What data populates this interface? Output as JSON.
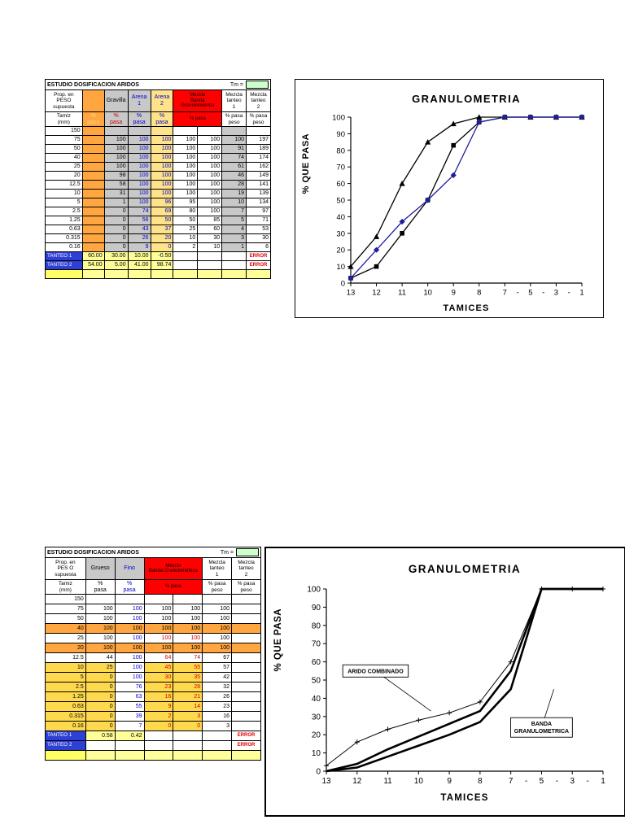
{
  "table1": {
    "title": "ESTUDIO DOSIFICACION ARIDOS",
    "tm_label": "Tm =",
    "prop_header": "Prop. en\nPESO\nsupuesta",
    "tamiz_header": "Tamiz\n(mm)",
    "groups": [
      {
        "label": ""
      },
      {
        "label": "Gravilla"
      },
      {
        "label": "Arena\n1"
      },
      {
        "label": "Arena\n2"
      },
      {
        "label": "Mezcla\nBanda Granulométrica",
        "span": 2
      },
      {
        "label": "Mezcla\ntanteo\n1"
      },
      {
        "label": "Mezcla\ntanteo\n2"
      }
    ],
    "pct": [
      {
        "label": "%\npasa"
      },
      {
        "label": "%\npasa"
      },
      {
        "label": "%\npasa"
      },
      {
        "label": "%\npasa"
      },
      {
        "label": "% pasa",
        "span": 2
      },
      {
        "label": "% pasa\npeso"
      },
      {
        "label": "% pasa\npeso"
      }
    ],
    "rows": [
      {
        "tamiz": "150",
        "values": [
          "",
          "",
          "",
          "",
          "",
          "",
          "",
          ""
        ]
      },
      {
        "tamiz": "75",
        "values": [
          "",
          "100",
          "100",
          "100",
          "100",
          "100",
          "100",
          "197"
        ]
      },
      {
        "tamiz": "50",
        "values": [
          "",
          "100",
          "100",
          "100",
          "100",
          "100",
          "91",
          "189"
        ]
      },
      {
        "tamiz": "40",
        "values": [
          "",
          "100",
          "100",
          "100",
          "100",
          "100",
          "74",
          "174"
        ]
      },
      {
        "tamiz": "25",
        "values": [
          "",
          "100",
          "100",
          "100",
          "100",
          "100",
          "61",
          "162"
        ]
      },
      {
        "tamiz": "20",
        "values": [
          "",
          "98",
          "100",
          "100",
          "100",
          "100",
          "46",
          "149"
        ]
      },
      {
        "tamiz": "12.5",
        "values": [
          "",
          "58",
          "100",
          "100",
          "100",
          "100",
          "28",
          "141"
        ]
      },
      {
        "tamiz": "10",
        "values": [
          "",
          "31",
          "100",
          "100",
          "100",
          "100",
          "19",
          "139"
        ]
      },
      {
        "tamiz": "5",
        "values": [
          "",
          "1",
          "100",
          "96",
          "95",
          "100",
          "10",
          "134"
        ]
      },
      {
        "tamiz": "2.5",
        "values": [
          "",
          "0",
          "74",
          "69",
          "80",
          "100",
          "7",
          "97"
        ]
      },
      {
        "tamiz": "1.25",
        "values": [
          "",
          "0",
          "56",
          "50",
          "50",
          "85",
          "5",
          "71"
        ]
      },
      {
        "tamiz": "0.63",
        "values": [
          "",
          "0",
          "43",
          "37",
          "25",
          "60",
          "4",
          "53"
        ]
      },
      {
        "tamiz": "0.315",
        "values": [
          "",
          "0",
          "26",
          "20",
          "10",
          "30",
          "3",
          "30"
        ]
      },
      {
        "tamiz": "0.16",
        "values": [
          "",
          "0",
          "9",
          "0",
          "2",
          "10",
          "1",
          "6"
        ]
      }
    ],
    "tanteos": [
      {
        "label": "TANTEO 1",
        "style": "blue",
        "values": [
          "60.00",
          "30.00",
          "10.00",
          "-0.50",
          "",
          "",
          "",
          ""
        ],
        "error": "ERROR"
      },
      {
        "label": "TANTEO 2",
        "style": "blue",
        "values": [
          "54.00",
          "5.00",
          "41.00",
          "98.74",
          "",
          "",
          "",
          ""
        ],
        "error": "ERROR"
      },
      {
        "label": "TANTEO 3",
        "style": "yellow",
        "values": [
          "",
          "",
          "",
          "",
          "",
          "",
          "",
          ""
        ],
        "error": ""
      }
    ]
  },
  "table2": {
    "title": "ESTUDIO DOSIFICACION ARIDOS",
    "tm_label": "Tm =",
    "prop_header": "Prop. en\nPES O\nsupuesta",
    "tamiz_header": "Tamiz\n(mm)",
    "groups": [
      {
        "label": "Grueso"
      },
      {
        "label": "Fino"
      },
      {
        "label": "Mezcla\nBanda Granulométrica",
        "span": 2
      },
      {
        "label": "Mezcla\ntanteo\n1"
      },
      {
        "label": "Mezcla\ntanteo\n2"
      }
    ],
    "pct": [
      {
        "label": "%\npasa"
      },
      {
        "label": "%\npasa"
      },
      {
        "label": "% pasa",
        "span": 2
      },
      {
        "label": "% pasa\npeso"
      },
      {
        "label": "% pasa\npeso"
      }
    ],
    "rows": [
      {
        "tamiz": "150",
        "values": [
          "",
          "",
          "",
          "",
          "",
          ""
        ]
      },
      {
        "tamiz": "75",
        "values": [
          "100",
          "100",
          "100",
          "100",
          "100",
          ""
        ]
      },
      {
        "tamiz": "50",
        "values": [
          "100",
          "100",
          "100",
          "100",
          "100",
          ""
        ]
      },
      {
        "tamiz": "40",
        "values": [
          "100",
          "100",
          "100",
          "100",
          "100",
          ""
        ],
        "hl": "orange"
      },
      {
        "tamiz": "25",
        "values": [
          "100",
          "100",
          "100",
          "100",
          "100",
          ""
        ],
        "red": true
      },
      {
        "tamiz": "20",
        "values": [
          "100",
          "100",
          "100",
          "100",
          "100",
          ""
        ],
        "hl": "orange"
      },
      {
        "tamiz": "12.5",
        "values": [
          "44",
          "100",
          "64",
          "74",
          "67",
          ""
        ],
        "red": true
      },
      {
        "tamiz": "10",
        "values": [
          "25",
          "100",
          "45",
          "55",
          "57",
          ""
        ],
        "hl": "yellow",
        "red": true
      },
      {
        "tamiz": "5",
        "values": [
          "0",
          "100",
          "30",
          "35",
          "42",
          ""
        ],
        "hl": "yellow",
        "red": true
      },
      {
        "tamiz": "2.5",
        "values": [
          "0",
          "76",
          "23",
          "28",
          "32",
          ""
        ],
        "hl": "yellow",
        "red": true
      },
      {
        "tamiz": "1.25",
        "values": [
          "0",
          "63",
          "16",
          "21",
          "26",
          ""
        ],
        "hl": "yellow",
        "red": true
      },
      {
        "tamiz": "0.63",
        "values": [
          "0",
          "55",
          "9",
          "14",
          "23",
          ""
        ],
        "hl": "yellow",
        "red": true
      },
      {
        "tamiz": "0.315",
        "values": [
          "0",
          "39",
          "2",
          "3",
          "16",
          ""
        ],
        "hl": "yellow",
        "red": true
      },
      {
        "tamiz": "0.16",
        "values": [
          "0",
          "7",
          "0",
          "0",
          "3",
          ""
        ],
        "hl": "yellow",
        "red": true
      }
    ],
    "tanteos": [
      {
        "label": "TANTEO 1",
        "style": "blue",
        "values": [
          "0.58",
          "0.42",
          "",
          "",
          "",
          ""
        ],
        "error": "ERROR"
      },
      {
        "label": "TANTEO 2",
        "style": "blue",
        "values": [
          "",
          "",
          "",
          "",
          "",
          ""
        ],
        "error": "ERROR"
      },
      {
        "label": "TANTEO 3",
        "style": "yellow",
        "values": [
          "",
          "",
          "",
          "",
          "",
          ""
        ],
        "error": ""
      }
    ]
  },
  "chart_data": [
    {
      "id": "chart1",
      "type": "line",
      "title": "GRANULOMETRIA",
      "ylabel": "% QUE PASA",
      "xlabel": "TAMICES",
      "categories": [
        "13",
        "12",
        "11",
        "10",
        "9",
        "8",
        "7",
        "5",
        "3",
        "1"
      ],
      "ylim": [
        0,
        100
      ],
      "ytick_step": 10,
      "series": [
        {
          "name": "mezcla-triangulo",
          "marker": "triangle",
          "color": "#000000",
          "width": 1.3,
          "values": [
            10,
            28,
            60,
            85,
            96,
            100,
            100,
            100,
            100,
            100
          ]
        },
        {
          "name": "mezcla-cuadrado",
          "marker": "square",
          "color": "#000000",
          "width": 1.3,
          "values": [
            3,
            10,
            30,
            50,
            83,
            97,
            100,
            100,
            100,
            100
          ]
        },
        {
          "name": "mezcla-rombo",
          "marker": "diamond",
          "color": "#20209E",
          "width": 1.3,
          "values": [
            3,
            20,
            37,
            50,
            65,
            97,
            100,
            100,
            100,
            100
          ]
        }
      ],
      "annotations": []
    },
    {
      "id": "chart2",
      "type": "line",
      "title": "GRANULOMETRIA",
      "ylabel": "% QUE PASA",
      "xlabel": "TAMICES",
      "categories": [
        "13",
        "12",
        "11",
        "10",
        "9",
        "8",
        "7",
        "5",
        "3",
        "1"
      ],
      "ylim": [
        0,
        100
      ],
      "ytick_step": 10,
      "series": [
        {
          "name": "arido-combinado",
          "marker": "plus",
          "color": "#000000",
          "width": 1,
          "values": [
            3,
            16,
            23,
            28,
            32,
            38,
            60,
            100,
            100,
            100
          ]
        },
        {
          "name": "banda-inferior",
          "marker": "none",
          "color": "#000000",
          "width": 2.6,
          "values": [
            0,
            2,
            8,
            14,
            20,
            27,
            45,
            100,
            100,
            100
          ]
        },
        {
          "name": "banda-superior",
          "marker": "none",
          "color": "#000000",
          "width": 2.6,
          "values": [
            0,
            4,
            12,
            19,
            26,
            33,
            55,
            100,
            100,
            100
          ]
        }
      ],
      "annotations": [
        {
          "text": "ARIDO COMBINADO",
          "cx": 1.6,
          "cy": 55,
          "tx": 3.4,
          "ty": 33
        },
        {
          "text": "BANDA\nGRANULOMETRICA",
          "cx": 7.0,
          "cy": 24,
          "tx": 7.4,
          "ty": 45
        }
      ]
    }
  ]
}
